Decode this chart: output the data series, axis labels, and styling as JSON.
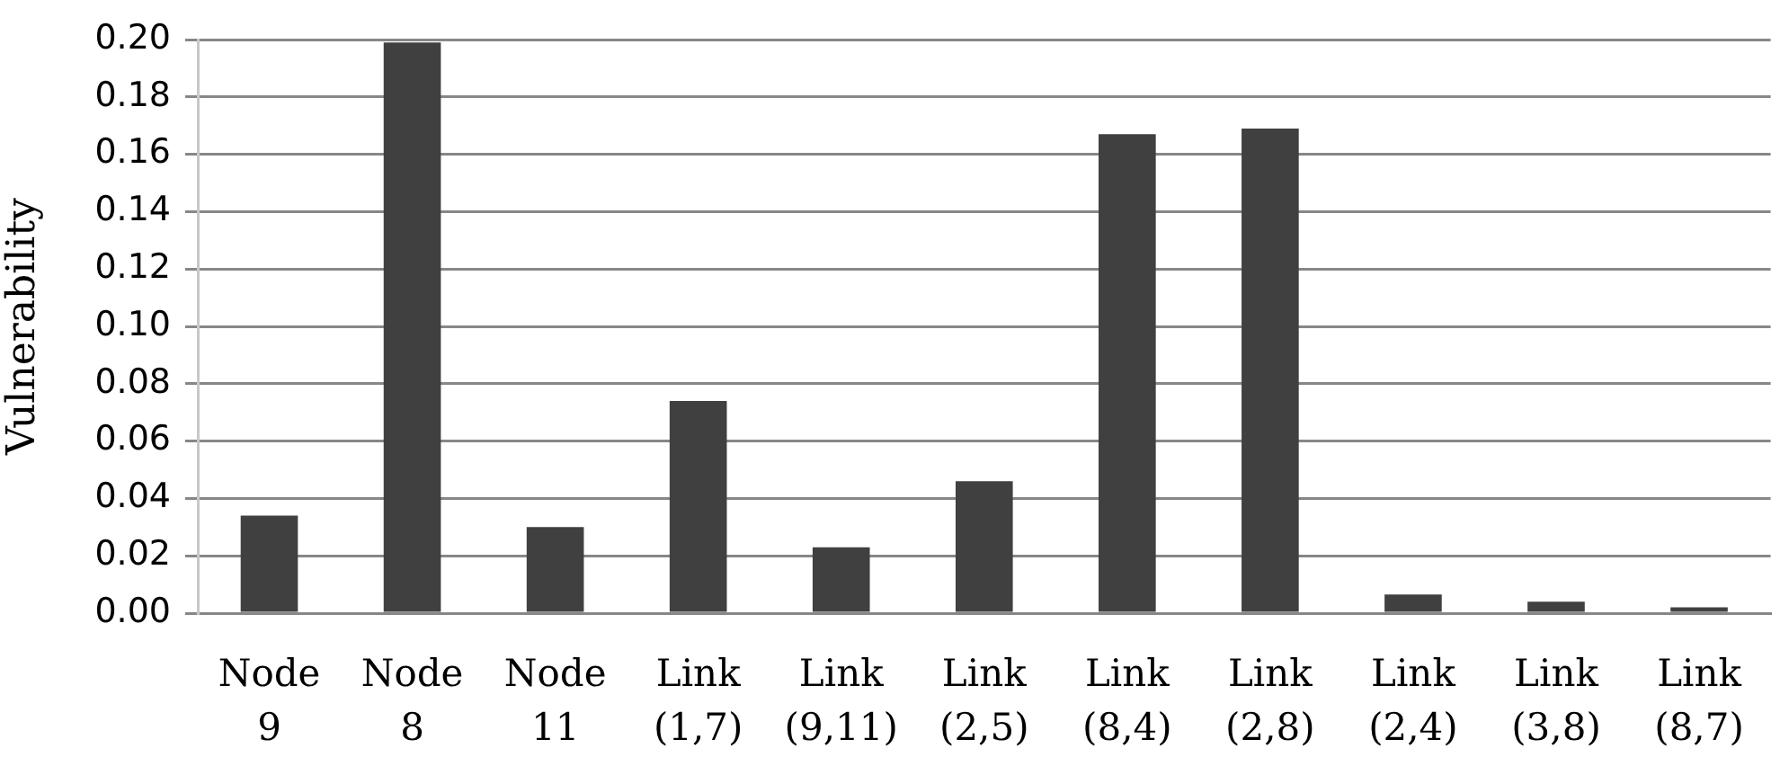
{
  "chart_data": {
    "type": "bar",
    "ylabel": "Vulnerability",
    "categories": [
      "Node 9",
      "Node 8",
      "Node 11",
      "Link (1,7)",
      "Link (9,11)",
      "Link (2,5)",
      "Link (8,4)",
      "Link (2,8)",
      "Link (2,4)",
      "Link (3,8)",
      "Link (8,7)"
    ],
    "values": [
      0.034,
      0.199,
      0.03,
      0.074,
      0.023,
      0.046,
      0.167,
      0.169,
      0.0065,
      0.004,
      0.002
    ],
    "color": "#404040",
    "ylim": [
      0,
      0.2
    ],
    "yticks": [
      {
        "value": 0,
        "label": "0.00"
      },
      {
        "value": 0.02,
        "label": "0.02"
      },
      {
        "value": 0.04,
        "label": "0.04"
      },
      {
        "value": 0.06,
        "label": "0.06"
      },
      {
        "value": 0.08,
        "label": "0.08"
      },
      {
        "value": 0.1,
        "label": "0.10"
      },
      {
        "value": 0.12,
        "label": "0.12"
      },
      {
        "value": 0.14,
        "label": "0.14"
      },
      {
        "value": 0.16,
        "label": "0.16"
      },
      {
        "value": 0.18,
        "label": "0.18"
      },
      {
        "value": 0.2,
        "label": "0.20"
      }
    ],
    "grid": "y",
    "legend": false
  }
}
